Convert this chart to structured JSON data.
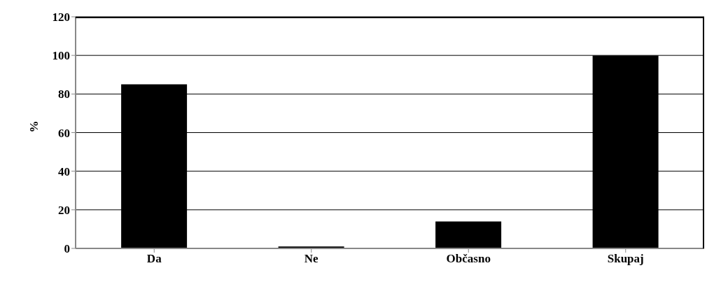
{
  "chart_data": {
    "type": "bar",
    "ylabel": "%",
    "categories": [
      "Da",
      "Ne",
      "Občasno",
      "Skupaj"
    ],
    "values": [
      85,
      1,
      14,
      100
    ],
    "color": "#000000",
    "ylim": [
      0,
      120
    ],
    "yticks": [
      0,
      20,
      40,
      60,
      80,
      100,
      120
    ],
    "grid": "y"
  }
}
